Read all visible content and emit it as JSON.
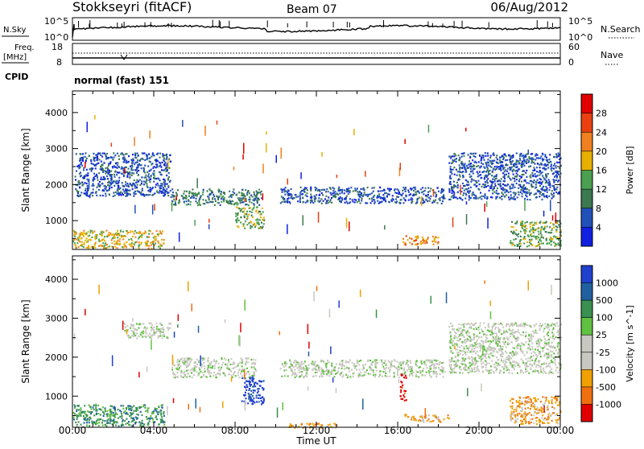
{
  "header": {
    "station": "Stokkseyri (fitACF)",
    "beam": "Beam 07",
    "date": "06/Aug/2012"
  },
  "status": {
    "nsky_label": "N.Sky",
    "nsky_ticks": [
      "10^5",
      "10^0"
    ],
    "nsearch_label": "N.Search",
    "nsearch_ticks": [
      "10^5",
      "10^0"
    ],
    "freq_label": "Freq.",
    "freq_unit": "[MHz]",
    "freq_ticks": [
      "18",
      "8"
    ],
    "nave_label": "Nave",
    "nave_ticks": [
      "60",
      "0"
    ],
    "cpid_label": "CPID",
    "cpid_value": "normal (fast) 151"
  },
  "chart_data": [
    {
      "type": "heatmap",
      "name": "power",
      "xlabel": "",
      "ylabel": "Slant Range [km]",
      "ylim": [
        200,
        4600
      ],
      "yticks": [
        "1000",
        "2000",
        "3000",
        "4000"
      ],
      "xlim": [
        0,
        24
      ],
      "colorbar": {
        "label": "Power [dB]",
        "ticks": [
          "4",
          "8",
          "12",
          "16",
          "20",
          "24",
          "28"
        ],
        "colors": [
          "#1020e0",
          "#2050b8",
          "#3c7850",
          "#4aa050",
          "#e8b000",
          "#f08020",
          "#e84010",
          "#e00000"
        ]
      },
      "echo_bands": [
        {
          "t0": 0.1,
          "t1": 4.8,
          "r0": 1700,
          "r1": 2900,
          "level": 1
        },
        {
          "t0": 0.0,
          "t1": 4.5,
          "r0": 250,
          "r1": 750,
          "level": 4
        },
        {
          "t0": 4.8,
          "t1": 9.3,
          "r0": 1450,
          "r1": 1900,
          "level": 2
        },
        {
          "t0": 8.0,
          "t1": 9.4,
          "r0": 800,
          "r1": 1400,
          "level": 3
        },
        {
          "t0": 10.2,
          "t1": 18.3,
          "r0": 1500,
          "r1": 1950,
          "level": 1
        },
        {
          "t0": 16.2,
          "t1": 18.0,
          "r0": 350,
          "r1": 600,
          "level": 5
        },
        {
          "t0": 18.5,
          "t1": 24.0,
          "r0": 1600,
          "r1": 2900,
          "level": 1
        },
        {
          "t0": 21.5,
          "t1": 24.0,
          "r0": 300,
          "r1": 1000,
          "level": 3
        }
      ]
    },
    {
      "type": "heatmap",
      "name": "velocity",
      "xlabel": "Time UT",
      "ylabel": "Slant Range [km]",
      "ylim": [
        200,
        4600
      ],
      "yticks": [
        "1000",
        "2000",
        "3000",
        "4000"
      ],
      "xlim": [
        0,
        24
      ],
      "xticks": [
        "00:00",
        "04:00",
        "08:00",
        "12:00",
        "16:00",
        "20:00",
        "00:00"
      ],
      "colorbar": {
        "label": "Velocity [m s^-1]",
        "ticks": [
          "1000",
          "500",
          "100",
          "25",
          "-25",
          "-100",
          "-500",
          "-1000"
        ],
        "colors": [
          "#2040d0",
          "#2060a0",
          "#3a9050",
          "#60c040",
          "#c8c8c0",
          "#c8c8c0",
          "#f0a000",
          "#f07010",
          "#e00000"
        ]
      },
      "echo_bands": [
        {
          "t0": 2.5,
          "t1": 4.8,
          "r0": 2500,
          "r1": 2900,
          "level": 4
        },
        {
          "t0": 4.8,
          "t1": 9.0,
          "r0": 1500,
          "r1": 2000,
          "level": 4
        },
        {
          "t0": 0.0,
          "t1": 4.5,
          "r0": 250,
          "r1": 800,
          "level": 2
        },
        {
          "t0": 8.3,
          "t1": 9.4,
          "r0": 800,
          "r1": 1500,
          "level": 0
        },
        {
          "t0": 10.2,
          "t1": 18.3,
          "r0": 1500,
          "r1": 1950,
          "level": 4
        },
        {
          "t0": 16.1,
          "t1": 16.4,
          "r0": 900,
          "r1": 1600,
          "level": 8
        },
        {
          "t0": 16.3,
          "t1": 18.5,
          "r0": 350,
          "r1": 550,
          "level": 6
        },
        {
          "t0": 10.6,
          "t1": 13.0,
          "r0": 200,
          "r1": 320,
          "level": 6
        },
        {
          "t0": 18.5,
          "t1": 24.0,
          "r0": 1600,
          "r1": 2900,
          "level": 4
        },
        {
          "t0": 21.5,
          "t1": 24.0,
          "r0": 300,
          "r1": 1000,
          "level": 6
        }
      ]
    }
  ]
}
